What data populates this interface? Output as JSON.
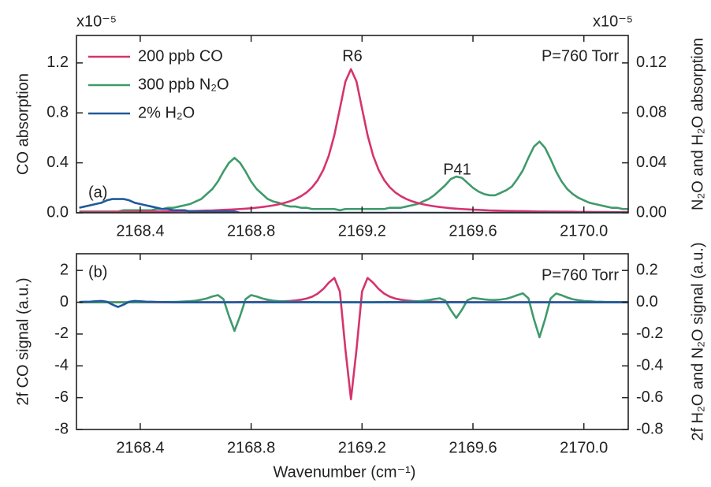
{
  "chart_data": [
    {
      "type": "line",
      "label": "(a)",
      "annotations": [
        "R6",
        "P41",
        "P=760 Torr"
      ],
      "ylabel": "CO absorption",
      "y2label": "N₂O and H₂O absorption",
      "y_multiplier": "x10⁻⁵",
      "y2_multiplier": "x10⁻⁵",
      "xlim": [
        2168.17,
        2170.16
      ],
      "xticks": [
        2168.4,
        2168.8,
        2169.2,
        2169.6,
        {
          "value": 2170,
          "label": "2170.0"
        }
      ],
      "ylim": [
        0,
        1.42
      ],
      "yticks": [
        {
          "value": 0,
          "label": "0.0"
        },
        0.4,
        0.8,
        1.2
      ],
      "y2lim": [
        0,
        0.142
      ],
      "y2ticks": [
        {
          "value": 0,
          "label": "0.00"
        },
        0.04,
        0.08,
        0.12
      ],
      "legend": "upper left",
      "x": [
        2168.18,
        2168.2,
        2168.22,
        2168.24,
        2168.26,
        2168.28,
        2168.3,
        2168.32,
        2168.34,
        2168.36,
        2168.38,
        2168.4,
        2168.42,
        2168.44,
        2168.46,
        2168.48,
        2168.5,
        2168.52,
        2168.54,
        2168.56,
        2168.58,
        2168.6,
        2168.62,
        2168.64,
        2168.66,
        2168.68,
        2168.7,
        2168.72,
        2168.74,
        2168.76,
        2168.78,
        2168.8,
        2168.82,
        2168.84,
        2168.86,
        2168.88,
        2168.9,
        2168.92,
        2168.94,
        2168.96,
        2168.98,
        2169,
        2169.02,
        2169.04,
        2169.06,
        2169.08,
        2169.1,
        2169.12,
        2169.14,
        2169.16,
        2169.18,
        2169.2,
        2169.22,
        2169.24,
        2169.26,
        2169.28,
        2169.3,
        2169.32,
        2169.34,
        2169.36,
        2169.38,
        2169.4,
        2169.42,
        2169.44,
        2169.46,
        2169.48,
        2169.5,
        2169.52,
        2169.54,
        2169.56,
        2169.58,
        2169.6,
        2169.62,
        2169.64,
        2169.66,
        2169.68,
        2169.7,
        2169.72,
        2169.74,
        2169.76,
        2169.78,
        2169.8,
        2169.82,
        2169.84,
        2169.86,
        2169.88,
        2169.9,
        2169.92,
        2169.94,
        2169.96,
        2169.98,
        2170,
        2170.02,
        2170.04,
        2170.06,
        2170.08,
        2170.1,
        2170.12,
        2170.14,
        2170.16
      ],
      "series": [
        {
          "name": "300 ppb N₂O",
          "color": "#3f9a6b",
          "axis": "y2",
          "values": [
            0.001,
            0.001,
            0.001,
            0.001,
            0.001,
            0.001,
            0.001,
            0.001,
            0.002,
            0.002,
            0.002,
            0.002,
            0.002,
            0.002,
            0.003,
            0.003,
            0.004,
            0.004,
            0.005,
            0.006,
            0.007,
            0.009,
            0.011,
            0.015,
            0.019,
            0.025,
            0.033,
            0.04,
            0.044,
            0.04,
            0.033,
            0.025,
            0.019,
            0.015,
            0.011,
            0.009,
            0.008,
            0.006,
            0.005,
            0.005,
            0.004,
            0.004,
            0.003,
            0.003,
            0.003,
            0.003,
            0.003,
            0.002,
            0.003,
            0.003,
            0.003,
            0.003,
            0.003,
            0.003,
            0.003,
            0.003,
            0.004,
            0.004,
            0.004,
            0.005,
            0.006,
            0.007,
            0.009,
            0.011,
            0.014,
            0.018,
            0.022,
            0.027,
            0.029,
            0.028,
            0.024,
            0.02,
            0.017,
            0.015,
            0.014,
            0.014,
            0.016,
            0.018,
            0.021,
            0.027,
            0.034,
            0.044,
            0.053,
            0.057,
            0.052,
            0.043,
            0.033,
            0.025,
            0.019,
            0.015,
            0.012,
            0.01,
            0.008,
            0.007,
            0.006,
            0.005,
            0.004,
            0.004,
            0.003,
            0.003
          ]
        },
        {
          "name": "200 ppb CO",
          "color": "#d6336e",
          "values": [
            0.005,
            0.005,
            0.005,
            0.006,
            0.006,
            0.006,
            0.007,
            0.007,
            0.007,
            0.008,
            0.008,
            0.008,
            0.009,
            0.009,
            0.01,
            0.01,
            0.011,
            0.012,
            0.013,
            0.013,
            0.014,
            0.015,
            0.016,
            0.018,
            0.019,
            0.021,
            0.023,
            0.025,
            0.027,
            0.03,
            0.033,
            0.036,
            0.041,
            0.046,
            0.052,
            0.059,
            0.068,
            0.079,
            0.092,
            0.11,
            0.133,
            0.163,
            0.204,
            0.261,
            0.342,
            0.457,
            0.621,
            0.834,
            1.051,
            1.15,
            1.051,
            0.834,
            0.621,
            0.457,
            0.342,
            0.261,
            0.204,
            0.163,
            0.133,
            0.11,
            0.092,
            0.079,
            0.068,
            0.059,
            0.052,
            0.046,
            0.041,
            0.036,
            0.033,
            0.03,
            0.027,
            0.025,
            0.023,
            0.021,
            0.019,
            0.018,
            0.016,
            0.015,
            0.014,
            0.013,
            0.013,
            0.012,
            0.011,
            0.01,
            0.01,
            0.009,
            0.009,
            0.008,
            0.008,
            0.008,
            0.007,
            0.007,
            0.007,
            0.006,
            0.006,
            0.006,
            0.005,
            0.005,
            0.005,
            0.005
          ]
        },
        {
          "name": "2% H₂O",
          "color": "#1f5a9c",
          "axis": "y2",
          "values": [
            0.004,
            0.005,
            0.006,
            0.007,
            0.008,
            0.01,
            0.011,
            0.011,
            0.011,
            0.01,
            0.008,
            0.007,
            0.006,
            0.005,
            0.004,
            0.003,
            0.003,
            0.002,
            0.002,
            0.002,
            0.001,
            0.001,
            0.001,
            0.001,
            0.001,
            0.001,
            0.001,
            0.001,
            0.001,
            0,
            0,
            0,
            0,
            0,
            0,
            0,
            0,
            0,
            0,
            0,
            0,
            0,
            0,
            0,
            0,
            0,
            0,
            0,
            0,
            0,
            0,
            0,
            0,
            0,
            0,
            0,
            0,
            0,
            0,
            0,
            0,
            0,
            0,
            0,
            0,
            0,
            0,
            0,
            0,
            0,
            0,
            0,
            0,
            0,
            0,
            0,
            0,
            0,
            0,
            0,
            0,
            0,
            0,
            0,
            0,
            0,
            0,
            0,
            0,
            0,
            0,
            0,
            0,
            0,
            0,
            0,
            0,
            0,
            0,
            0
          ]
        }
      ]
    },
    {
      "type": "line",
      "label": "(b)",
      "annotations": [
        "P=760 Torr"
      ],
      "ylabel": "2f CO signal (a.u.)",
      "y2label": "2f H₂O and N₂O signal (a.u.)",
      "xlabel": "Wavenumber (cm⁻¹)",
      "xlim": [
        2168.17,
        2170.16
      ],
      "xticks": [
        2168.4,
        2168.8,
        2169.2,
        2169.6,
        {
          "value": 2170,
          "label": "2170.0"
        }
      ],
      "ylim": [
        -8,
        3.05
      ],
      "yticks": [
        -8,
        -6,
        -4,
        -2,
        0,
        2
      ],
      "y2lim": [
        -0.8,
        0.305
      ],
      "y2ticks": [
        -0.8,
        -0.6,
        -0.4,
        -0.2,
        {
          "value": 0,
          "label": "0.0"
        },
        0.2
      ],
      "x": [
        2168.18,
        2168.2,
        2168.22,
        2168.24,
        2168.26,
        2168.28,
        2168.3,
        2168.32,
        2168.34,
        2168.36,
        2168.38,
        2168.4,
        2168.42,
        2168.44,
        2168.46,
        2168.48,
        2168.5,
        2168.52,
        2168.54,
        2168.56,
        2168.58,
        2168.6,
        2168.62,
        2168.64,
        2168.66,
        2168.68,
        2168.7,
        2168.72,
        2168.74,
        2168.76,
        2168.78,
        2168.8,
        2168.82,
        2168.84,
        2168.86,
        2168.88,
        2168.9,
        2168.92,
        2168.94,
        2168.96,
        2168.98,
        2169,
        2169.02,
        2169.04,
        2169.06,
        2169.08,
        2169.1,
        2169.12,
        2169.14,
        2169.16,
        2169.18,
        2169.2,
        2169.22,
        2169.24,
        2169.26,
        2169.28,
        2169.3,
        2169.32,
        2169.34,
        2169.36,
        2169.38,
        2169.4,
        2169.42,
        2169.44,
        2169.46,
        2169.48,
        2169.5,
        2169.52,
        2169.54,
        2169.56,
        2169.58,
        2169.6,
        2169.62,
        2169.64,
        2169.66,
        2169.68,
        2169.7,
        2169.72,
        2169.74,
        2169.76,
        2169.78,
        2169.8,
        2169.82,
        2169.84,
        2169.86,
        2169.88,
        2169.9,
        2169.92,
        2169.94,
        2169.96,
        2169.98,
        2170,
        2170.02,
        2170.04,
        2170.06,
        2170.08,
        2170.1,
        2170.12,
        2170.14,
        2170.16
      ],
      "series": [
        {
          "color": "#d6336e",
          "values": [
            0,
            0,
            0,
            0,
            0,
            0,
            0,
            0,
            0,
            0,
            0,
            0,
            0,
            0,
            0,
            0,
            0,
            0,
            0,
            0,
            0,
            0,
            0,
            0,
            0,
            0,
            0,
            0,
            0,
            0.01,
            0.01,
            0.01,
            0.02,
            0.02,
            0.03,
            0.03,
            0.04,
            0.06,
            0.08,
            0.11,
            0.16,
            0.23,
            0.35,
            0.54,
            0.83,
            1.23,
            1.53,
            0.68,
            -2.97,
            -6.1,
            -2.97,
            0.68,
            1.53,
            1.23,
            0.83,
            0.54,
            0.35,
            0.23,
            0.16,
            0.11,
            0.08,
            0.06,
            0.04,
            0.03,
            0.03,
            0.02,
            0.02,
            0.01,
            0.01,
            0.01,
            0,
            0,
            0,
            0,
            0,
            0,
            0,
            0,
            0,
            0,
            0,
            0,
            0,
            0,
            0,
            0,
            0,
            0,
            0,
            0,
            0,
            0,
            0,
            0,
            0,
            0,
            0,
            0,
            0,
            0
          ]
        },
        {
          "color": "#3f9a6b",
          "axis": "y2",
          "values": [
            0,
            0,
            0,
            0,
            0,
            0,
            0,
            0,
            0,
            0,
            0,
            0,
            0,
            0.001,
            0.001,
            0.001,
            0.002,
            0.002,
            0.003,
            0.005,
            0.007,
            0.01,
            0.016,
            0.024,
            0.036,
            0.045,
            0.02,
            -0.087,
            -0.18,
            -0.087,
            0.02,
            0.045,
            0.036,
            0.024,
            0.016,
            0.01,
            0.007,
            0.005,
            0.003,
            0.002,
            0.002,
            0.001,
            0.001,
            0.001,
            0,
            0,
            0,
            0,
            0,
            0,
            0,
            0,
            0,
            0,
            0.001,
            0.001,
            0.001,
            0.001,
            0.002,
            0.003,
            0.004,
            0.006,
            0.009,
            0.014,
            0.02,
            0.025,
            0.011,
            -0.049,
            -0.099,
            -0.048,
            0.013,
            0.027,
            0.023,
            0.018,
            0.015,
            0.014,
            0.017,
            0.022,
            0.032,
            0.045,
            0.056,
            0.025,
            -0.107,
            -0.22,
            -0.107,
            0.024,
            0.055,
            0.044,
            0.03,
            0.019,
            0.013,
            0.008,
            0.006,
            0.004,
            0.003,
            0.002,
            0.002,
            0.001,
            0.001,
            0.001
          ]
        },
        {
          "color": "#1f5a9c",
          "axis": "y2",
          "values": [
            0.002,
            0.003,
            0.004,
            0.006,
            0.008,
            0.003,
            -0.015,
            -0.03,
            -0.015,
            0.003,
            0.008,
            0.006,
            0.004,
            0.003,
            0.002,
            0.001,
            0.001,
            0,
            0,
            0,
            0,
            0,
            0,
            0,
            0,
            0,
            0,
            0,
            0,
            0,
            0,
            0,
            0,
            0,
            0,
            0,
            0,
            0,
            0,
            0,
            0,
            0,
            0,
            0,
            0,
            0,
            0,
            0,
            0,
            0,
            0,
            0,
            0,
            0,
            0,
            0,
            0,
            0,
            0,
            0,
            0,
            0,
            0,
            0,
            0,
            0,
            0,
            0,
            0,
            0,
            0,
            0,
            0,
            0,
            0,
            0,
            0,
            0,
            0,
            0,
            0,
            0,
            0,
            0,
            0,
            0,
            0,
            0,
            0,
            0,
            0,
            0,
            0,
            0,
            0,
            0,
            0,
            0,
            0,
            0
          ]
        }
      ]
    }
  ]
}
